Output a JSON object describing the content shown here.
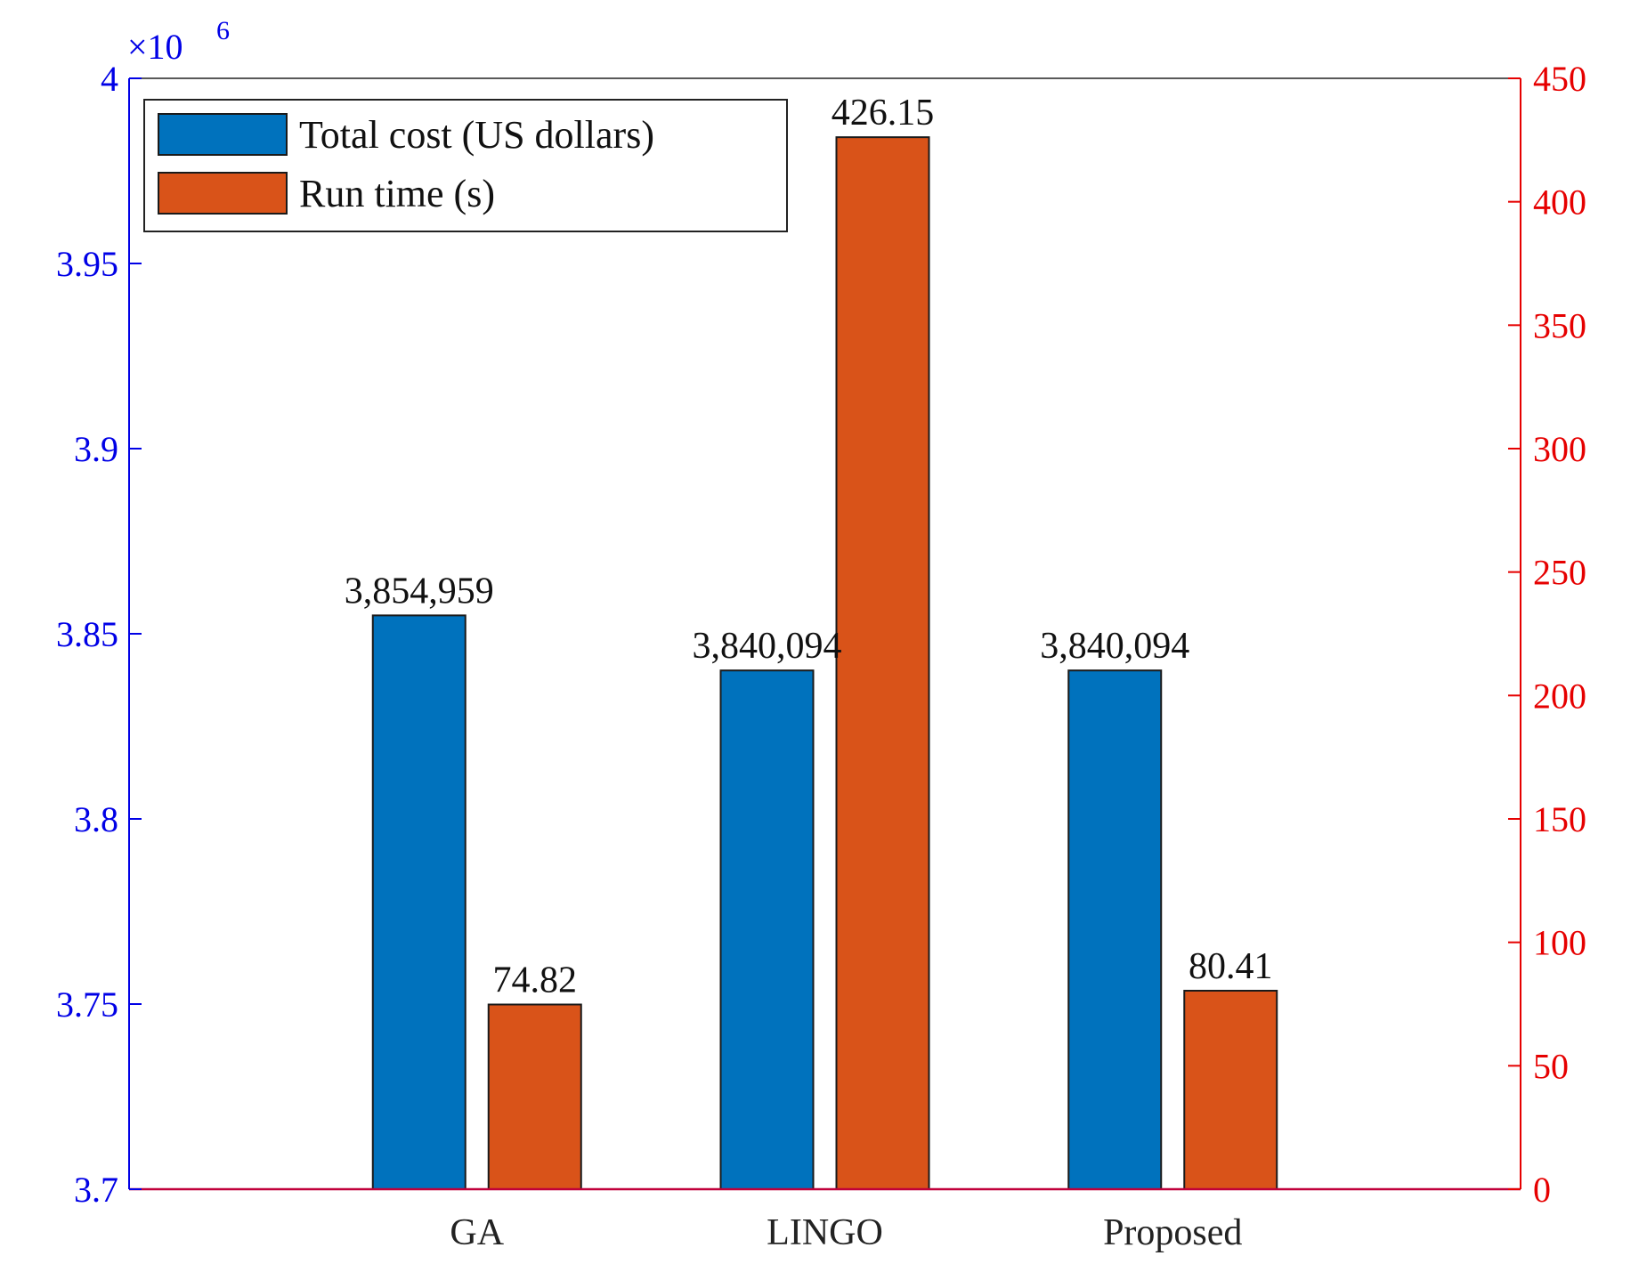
{
  "chart_data": {
    "type": "bar",
    "categories": [
      "GA",
      "LINGO",
      "Proposed"
    ],
    "series": [
      {
        "name": "Total cost (US dollars)",
        "axis": "left",
        "color": "#0072BD",
        "values": [
          3854959,
          3840094,
          3840094
        ],
        "labels": [
          "3,854,959",
          "3,840,094",
          "3,840,094"
        ]
      },
      {
        "name": "Run time (s)",
        "axis": "right",
        "color": "#D95319",
        "values": [
          74.82,
          426.15,
          80.41
        ],
        "labels": [
          "74.82",
          "426.15",
          "80.41"
        ]
      }
    ],
    "y_left": {
      "lim": [
        3700000,
        4000000
      ],
      "ticks": [
        3700000,
        3750000,
        3800000,
        3850000,
        3900000,
        3950000,
        4000000
      ],
      "tick_labels": [
        "3.7",
        "3.75",
        "3.8",
        "3.85",
        "3.9",
        "3.95",
        "4"
      ],
      "exponent_label": "×10",
      "exponent": "6",
      "color": "#0000e6"
    },
    "y_right": {
      "lim": [
        0,
        450
      ],
      "ticks": [
        0,
        50,
        100,
        150,
        200,
        250,
        300,
        350,
        400,
        450
      ],
      "tick_labels": [
        "0",
        "50",
        "100",
        "150",
        "200",
        "250",
        "300",
        "350",
        "400",
        "450"
      ],
      "color": "#e60000"
    },
    "legend": "top-left",
    "grid": false
  }
}
